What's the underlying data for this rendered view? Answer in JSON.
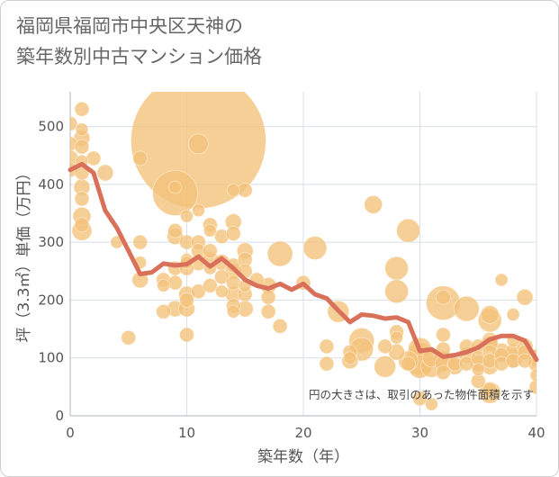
{
  "title_line1": "福岡県福岡市中央区天神の",
  "title_line2": "築年数別中古マンション価格",
  "chart_data": {
    "type": "scatter",
    "title": "福岡県福岡市中央区天神の築年数別中古マンション価格",
    "xlabel": "築年数（年）",
    "ylabel": "坪（3.3㎡）単価（万円）",
    "xlim": [
      0,
      40
    ],
    "ylim": [
      0,
      560
    ],
    "xticks": [
      0,
      10,
      20,
      30,
      40
    ],
    "yticks": [
      0,
      100,
      200,
      300,
      400,
      500
    ],
    "grid": true,
    "note": "円の大きさは、取引のあった物件面積を示す",
    "colors": {
      "bubble": "#f3c27a",
      "line": "#d9705a",
      "grid": "#d8dfe8"
    },
    "points": [
      [
        0,
        505,
        8
      ],
      [
        0,
        470,
        8
      ],
      [
        0,
        445,
        9
      ],
      [
        0,
        425,
        8
      ],
      [
        1,
        530,
        8
      ],
      [
        1,
        495,
        7
      ],
      [
        1,
        480,
        9
      ],
      [
        1,
        465,
        8
      ],
      [
        1,
        440,
        7
      ],
      [
        1,
        420,
        8
      ],
      [
        1,
        395,
        9
      ],
      [
        1,
        375,
        8
      ],
      [
        1,
        345,
        10
      ],
      [
        1,
        330,
        8
      ],
      [
        1,
        320,
        11
      ],
      [
        2,
        445,
        8
      ],
      [
        3,
        420,
        9
      ],
      [
        4,
        300,
        7
      ],
      [
        5,
        135,
        8
      ],
      [
        6,
        445,
        8
      ],
      [
        6,
        300,
        8
      ],
      [
        6,
        265,
        7
      ],
      [
        6,
        235,
        9
      ],
      [
        8,
        235,
        8
      ],
      [
        8,
        225,
        7
      ],
      [
        8,
        180,
        8
      ],
      [
        9,
        395,
        7
      ],
      [
        9,
        385,
        25
      ],
      [
        9,
        320,
        8
      ],
      [
        9,
        310,
        9
      ],
      [
        9,
        255,
        8
      ],
      [
        9,
        230,
        8
      ],
      [
        9,
        185,
        9
      ],
      [
        10,
        345,
        7
      ],
      [
        10,
        300,
        8
      ],
      [
        10,
        270,
        7
      ],
      [
        10,
        255,
        8
      ],
      [
        10,
        210,
        9
      ],
      [
        10,
        200,
        8
      ],
      [
        10,
        185,
        9
      ],
      [
        10,
        140,
        8
      ],
      [
        10,
        265,
        7
      ],
      [
        11,
        475,
        75
      ],
      [
        11,
        470,
        11
      ],
      [
        11,
        355,
        7
      ],
      [
        11,
        300,
        8
      ],
      [
        11,
        285,
        8
      ],
      [
        11,
        265,
        9
      ],
      [
        11,
        215,
        8
      ],
      [
        12,
        330,
        8
      ],
      [
        12,
        320,
        7
      ],
      [
        12,
        285,
        8
      ],
      [
        12,
        270,
        9
      ],
      [
        12,
        255,
        7
      ],
      [
        12,
        225,
        8
      ],
      [
        13,
        310,
        8
      ],
      [
        13,
        265,
        9
      ],
      [
        13,
        240,
        8
      ],
      [
        13,
        215,
        7
      ],
      [
        14,
        390,
        7
      ],
      [
        14,
        335,
        9
      ],
      [
        14,
        315,
        8
      ],
      [
        14,
        260,
        8
      ],
      [
        14,
        250,
        9
      ],
      [
        14,
        230,
        8
      ],
      [
        14,
        210,
        9
      ],
      [
        14,
        190,
        8
      ],
      [
        14,
        180,
        7
      ],
      [
        15,
        390,
        8
      ],
      [
        15,
        285,
        9
      ],
      [
        15,
        270,
        8
      ],
      [
        15,
        250,
        8
      ],
      [
        15,
        225,
        7
      ],
      [
        15,
        210,
        8
      ],
      [
        15,
        185,
        9
      ],
      [
        16,
        235,
        8
      ],
      [
        17,
        225,
        9
      ],
      [
        17,
        205,
        8
      ],
      [
        17,
        180,
        8
      ],
      [
        18,
        280,
        14
      ],
      [
        18,
        155,
        8
      ],
      [
        20,
        230,
        8
      ],
      [
        21,
        290,
        13
      ],
      [
        22,
        120,
        8
      ],
      [
        22,
        90,
        8
      ],
      [
        23,
        180,
        12
      ],
      [
        24,
        110,
        8
      ],
      [
        24,
        100,
        7
      ],
      [
        24,
        95,
        9
      ],
      [
        25,
        130,
        14
      ],
      [
        25,
        115,
        13
      ],
      [
        26,
        365,
        10
      ],
      [
        27,
        120,
        8
      ],
      [
        27,
        85,
        12
      ],
      [
        28,
        255,
        13
      ],
      [
        28,
        215,
        13
      ],
      [
        28,
        145,
        8
      ],
      [
        28,
        135,
        7
      ],
      [
        28,
        110,
        9
      ],
      [
        29,
        320,
        13
      ],
      [
        29,
        95,
        11
      ],
      [
        29,
        90,
        8
      ],
      [
        30,
        115,
        13
      ],
      [
        30,
        105,
        14
      ],
      [
        30,
        95,
        16
      ],
      [
        30,
        85,
        13
      ],
      [
        30,
        30,
        8
      ],
      [
        31,
        100,
        10
      ],
      [
        31,
        85,
        12
      ],
      [
        31,
        20,
        7
      ],
      [
        32,
        195,
        19
      ],
      [
        32,
        205,
        8
      ],
      [
        32,
        140,
        8
      ],
      [
        32,
        115,
        8
      ],
      [
        32,
        95,
        11
      ],
      [
        32,
        90,
        9
      ],
      [
        32,
        75,
        8
      ],
      [
        33,
        90,
        8
      ],
      [
        33,
        85,
        9
      ],
      [
        34,
        185,
        14
      ],
      [
        34,
        120,
        8
      ],
      [
        34,
        105,
        9
      ],
      [
        34,
        90,
        8
      ],
      [
        35,
        120,
        8
      ],
      [
        35,
        100,
        8
      ],
      [
        35,
        90,
        9
      ],
      [
        35,
        80,
        7
      ],
      [
        35,
        60,
        8
      ],
      [
        36,
        175,
        10
      ],
      [
        36,
        165,
        13
      ],
      [
        36,
        130,
        9
      ],
      [
        36,
        125,
        9
      ],
      [
        36,
        110,
        8
      ],
      [
        36,
        95,
        8
      ],
      [
        36,
        85,
        9
      ],
      [
        36,
        45,
        8
      ],
      [
        36,
        40,
        12
      ],
      [
        37,
        235,
        7
      ],
      [
        37,
        110,
        10
      ],
      [
        37,
        105,
        8
      ],
      [
        37,
        90,
        8
      ],
      [
        38,
        175,
        7
      ],
      [
        38,
        130,
        7
      ],
      [
        38,
        110,
        9
      ],
      [
        38,
        100,
        11
      ],
      [
        38,
        95,
        8
      ],
      [
        39,
        205,
        9
      ],
      [
        39,
        120,
        9
      ],
      [
        39,
        110,
        8
      ],
      [
        39,
        95,
        8
      ],
      [
        40,
        100,
        10
      ],
      [
        40,
        90,
        9
      ],
      [
        40,
        70,
        7
      ],
      [
        40,
        50,
        8
      ]
    ],
    "line": [
      [
        0,
        425
      ],
      [
        1,
        435
      ],
      [
        2,
        420
      ],
      [
        3,
        355
      ],
      [
        4,
        325
      ],
      [
        5,
        285
      ],
      [
        6,
        245
      ],
      [
        7,
        248
      ],
      [
        8,
        263
      ],
      [
        9,
        260
      ],
      [
        10,
        262
      ],
      [
        11,
        275
      ],
      [
        12,
        258
      ],
      [
        13,
        272
      ],
      [
        14,
        255
      ],
      [
        15,
        235
      ],
      [
        16,
        225
      ],
      [
        17,
        220
      ],
      [
        18,
        228
      ],
      [
        19,
        218
      ],
      [
        20,
        228
      ],
      [
        21,
        210
      ],
      [
        22,
        203
      ],
      [
        23,
        182
      ],
      [
        24,
        162
      ],
      [
        25,
        175
      ],
      [
        26,
        173
      ],
      [
        27,
        168
      ],
      [
        28,
        170
      ],
      [
        29,
        162
      ],
      [
        30,
        112
      ],
      [
        31,
        115
      ],
      [
        32,
        102
      ],
      [
        33,
        105
      ],
      [
        34,
        110
      ],
      [
        35,
        118
      ],
      [
        36,
        132
      ],
      [
        37,
        138
      ],
      [
        38,
        138
      ],
      [
        39,
        130
      ],
      [
        40,
        97
      ]
    ]
  }
}
